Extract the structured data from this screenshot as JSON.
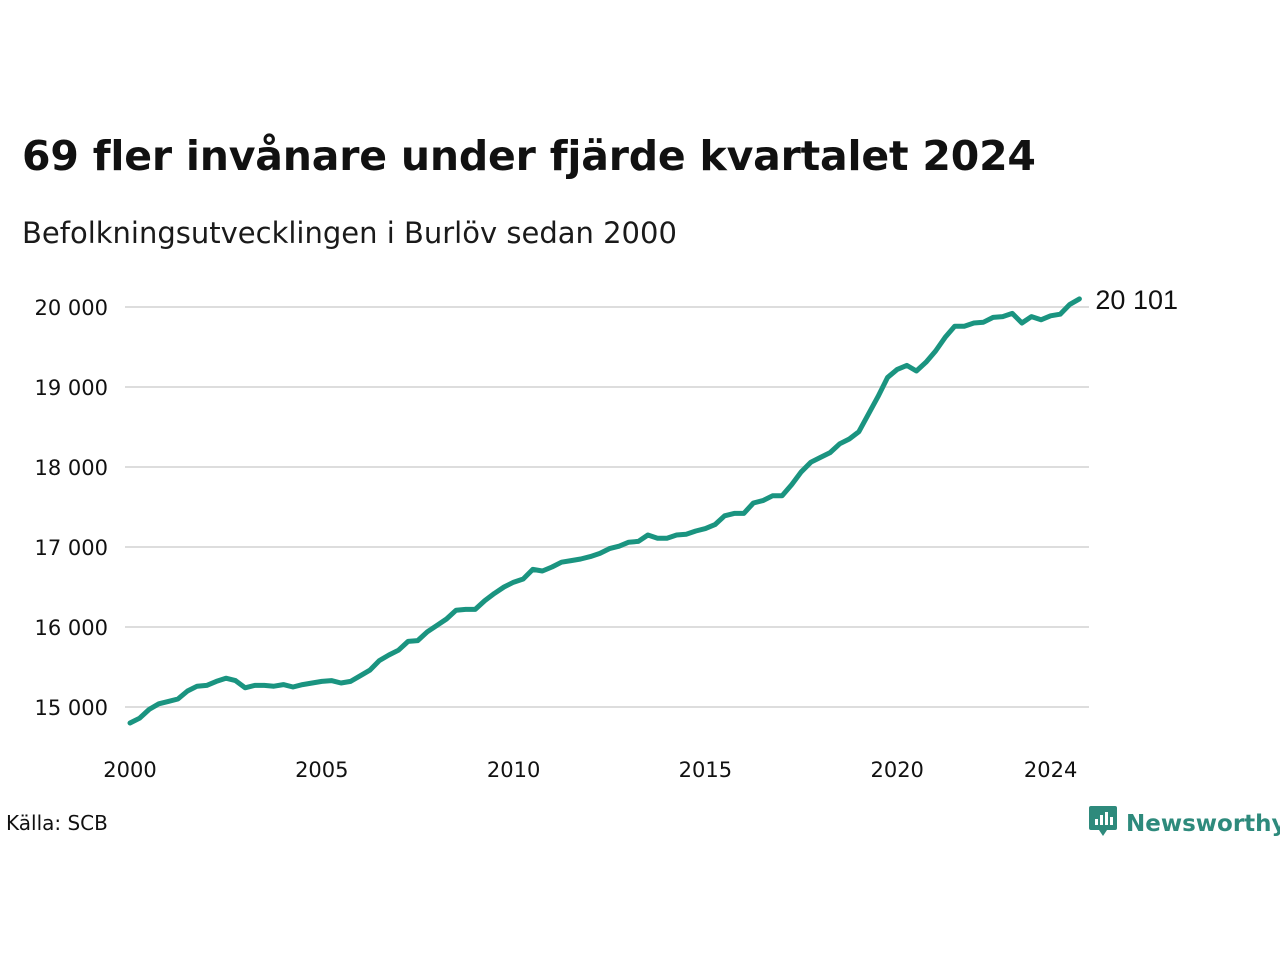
{
  "title": "69 fler invånare under fjärde kvartalet 2024",
  "subtitle": "Befolkningsutvecklingen i Burlöv sedan 2000",
  "source": "Källa: SCB",
  "brand": "Newsworthy",
  "colors": {
    "line": "#1a9480",
    "grid": "#dddddd",
    "brand": "#2e8a7c",
    "text": "#111111"
  },
  "chart_data": {
    "type": "line",
    "x_unit": "year (quarterly points)",
    "ylim": [
      14700,
      20150
    ],
    "xlim": [
      2000,
      2025
    ],
    "grid": "horizontal",
    "y_ticks": [
      {
        "value": 15000,
        "label": "15 000"
      },
      {
        "value": 16000,
        "label": "16 000"
      },
      {
        "value": 17000,
        "label": "17 000"
      },
      {
        "value": 18000,
        "label": "18 000"
      },
      {
        "value": 19000,
        "label": "19 000"
      },
      {
        "value": 20000,
        "label": "20 000"
      }
    ],
    "x_ticks": [
      {
        "value": 2000,
        "label": "2000"
      },
      {
        "value": 2005,
        "label": "2005"
      },
      {
        "value": 2010,
        "label": "2010"
      },
      {
        "value": 2015,
        "label": "2015"
      },
      {
        "value": 2020,
        "label": "2020"
      },
      {
        "value": 2024,
        "label": "2024"
      }
    ],
    "end_label": "20 101",
    "series": [
      {
        "x": [
          2000.0,
          2000.25,
          2000.5,
          2000.75,
          2001.0,
          2001.25,
          2001.5,
          2001.75,
          2002.0,
          2002.25,
          2002.5,
          2002.75,
          2003.0,
          2003.25,
          2003.5,
          2003.75,
          2004.0,
          2004.25,
          2004.5,
          2004.75,
          2005.0,
          2005.25,
          2005.5,
          2005.75,
          2006.0,
          2006.25,
          2006.5,
          2006.75,
          2007.0,
          2007.25,
          2007.5,
          2007.75,
          2008.0,
          2008.25,
          2008.5,
          2008.75,
          2009.0,
          2009.25,
          2009.5,
          2009.75,
          2010.0,
          2010.25,
          2010.5,
          2010.75,
          2011.0,
          2011.25,
          2011.5,
          2011.75,
          2012.0,
          2012.25,
          2012.5,
          2012.75,
          2013.0,
          2013.25,
          2013.5,
          2013.75,
          2014.0,
          2014.25,
          2014.5,
          2014.75,
          2015.0,
          2015.25,
          2015.5,
          2015.75,
          2016.0,
          2016.25,
          2016.5,
          2016.75,
          2017.0,
          2017.25,
          2017.5,
          2017.75,
          2018.0,
          2018.25,
          2018.5,
          2018.75,
          2019.0,
          2019.25,
          2019.5,
          2019.75,
          2020.0,
          2020.25,
          2020.5,
          2020.75,
          2021.0,
          2021.25,
          2021.5,
          2021.75,
          2022.0,
          2022.25,
          2022.5,
          2022.75,
          2023.0,
          2023.25,
          2023.5,
          2023.75,
          2024.0,
          2024.25,
          2024.5,
          2024.75
        ],
        "values": [
          14800,
          14860,
          14970,
          15040,
          15070,
          15100,
          15200,
          15260,
          15270,
          15320,
          15360,
          15330,
          15240,
          15270,
          15270,
          15260,
          15280,
          15250,
          15280,
          15300,
          15320,
          15330,
          15300,
          15320,
          15390,
          15460,
          15580,
          15650,
          15710,
          15820,
          15830,
          15940,
          16020,
          16100,
          16210,
          16220,
          16220,
          16330,
          16420,
          16500,
          16560,
          16600,
          16720,
          16700,
          16750,
          16810,
          16830,
          16850,
          16880,
          16920,
          16980,
          17010,
          17060,
          17070,
          17150,
          17110,
          17110,
          17150,
          17160,
          17200,
          17230,
          17280,
          17390,
          17420,
          17420,
          17550,
          17580,
          17640,
          17640,
          17780,
          17940,
          18060,
          18120,
          18180,
          18290,
          18350,
          18440,
          18660,
          18880,
          19120,
          19220,
          19270,
          19200,
          19310,
          19450,
          19620,
          19760,
          19760,
          19800,
          19810,
          19870,
          19880,
          19920,
          19800,
          19880,
          19840,
          19890,
          19910,
          20032,
          20101
        ]
      }
    ]
  }
}
